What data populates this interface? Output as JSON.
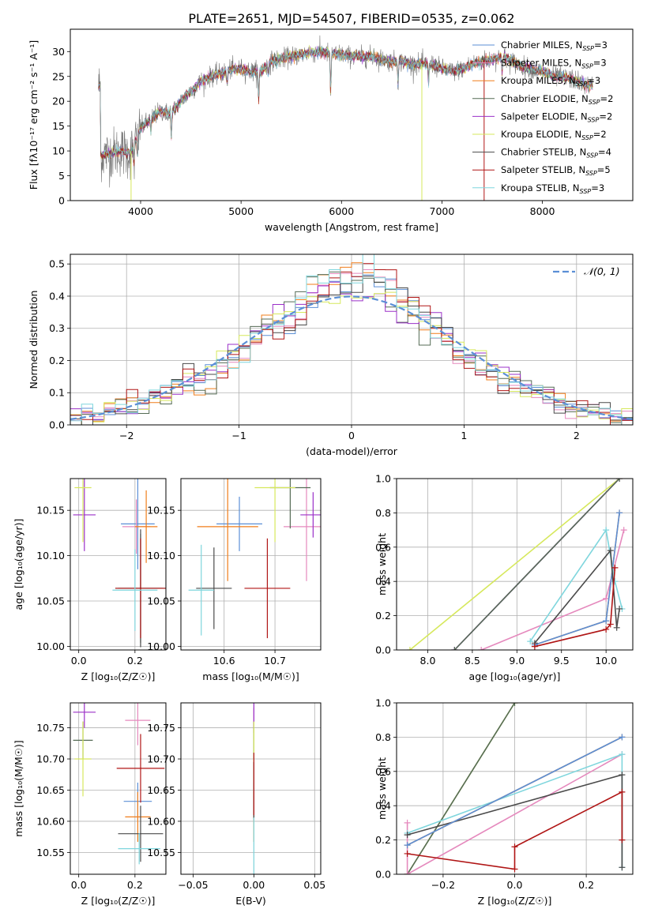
{
  "title": "PLATE=2651, MJD=54507, FIBERID=0535, z=0.062",
  "colors": {
    "chabrier_miles": "#5b8fd6",
    "salpeter_miles": "#e589bd",
    "kroupa_miles": "#f07d1a",
    "chabrier_elodie": "#556b55",
    "salpeter_elodie": "#9b30c8",
    "kroupa_elodie": "#d6e85c",
    "chabrier_stelib": "#4a4a4a",
    "salpeter_stelib": "#b01515",
    "kroupa_stelib": "#7fd6dd",
    "normal_curve": "#5b8fd6"
  },
  "chart_data": [
    {
      "id": "spectrum",
      "type": "line",
      "xlabel": "wavelength [Angstrom, rest frame]",
      "ylabel": "Flux [fλ10⁻¹⁷ erg cm⁻² s⁻¹ A⁻¹]",
      "xlim": [
        3300,
        8900
      ],
      "ylim": [
        0,
        34.5
      ],
      "xticks": [
        4000,
        5000,
        6000,
        7000,
        8000
      ],
      "yticks": [
        0,
        5,
        10,
        15,
        20,
        25,
        30
      ],
      "grid": false,
      "legend_placement": "top-right",
      "legend": [
        "Chabrier MILES, N_SSP=3",
        "Salpeter MILES, N_SSP=3",
        "Kroupa MILES, N_SSP=3",
        "Chabrier ELODIE, N_SSP=2",
        "Salpeter ELODIE, N_SSP=2",
        "Kroupa ELODIE, N_SSP=2",
        "Chabrier STELIB, N_SSP=4",
        "Salpeter STELIB, N_SSP=5",
        "Kroupa STELIB, N_SSP=3"
      ],
      "legend_display": [
        [
          "Chabrier MILES, N",
          "SSP",
          "=3"
        ],
        [
          "Salpeter MILES, N",
          "SSP",
          "=3"
        ],
        [
          "Kroupa MILES, N",
          "SSP",
          "=3"
        ],
        [
          "Chabrier ELODIE, N",
          "SSP",
          "=2"
        ],
        [
          "Salpeter ELODIE, N",
          "SSP",
          "=2"
        ],
        [
          "Kroupa ELODIE, N",
          "SSP",
          "=2"
        ],
        [
          "Chabrier STELIB, N",
          "SSP",
          "=4"
        ],
        [
          "Salpeter STELIB, N",
          "SSP",
          "=5"
        ],
        [
          "Kroupa STELIB, N",
          "SSP",
          "=3"
        ]
      ],
      "continuum": [
        [
          3600,
          9
        ],
        [
          3700,
          9.5
        ],
        [
          3800,
          10
        ],
        [
          3900,
          9.5
        ],
        [
          3950,
          12
        ],
        [
          4000,
          14.5
        ],
        [
          4100,
          16.5
        ],
        [
          4200,
          18
        ],
        [
          4300,
          17.5
        ],
        [
          4400,
          20
        ],
        [
          4500,
          22
        ],
        [
          4600,
          24
        ],
        [
          4700,
          25
        ],
        [
          4800,
          25.5
        ],
        [
          4900,
          26.5
        ],
        [
          5000,
          26.5
        ],
        [
          5100,
          26
        ],
        [
          5200,
          26
        ],
        [
          5300,
          28
        ],
        [
          5400,
          28.5
        ],
        [
          5500,
          29
        ],
        [
          5600,
          29.5
        ],
        [
          5700,
          29.8
        ],
        [
          5800,
          30
        ],
        [
          5900,
          29.5
        ],
        [
          6000,
          29.5
        ],
        [
          6100,
          29
        ],
        [
          6200,
          29
        ],
        [
          6300,
          29
        ],
        [
          6400,
          28.5
        ],
        [
          6500,
          28
        ],
        [
          6600,
          28
        ],
        [
          6700,
          27.5
        ],
        [
          6800,
          27.5
        ],
        [
          6900,
          27.5
        ],
        [
          7000,
          26.5
        ],
        [
          7100,
          26
        ],
        [
          7200,
          26.5
        ],
        [
          7300,
          27.5
        ],
        [
          7400,
          28
        ],
        [
          7500,
          28.5
        ],
        [
          7600,
          29
        ],
        [
          7700,
          28
        ],
        [
          7800,
          27
        ],
        [
          7900,
          26.5
        ],
        [
          8000,
          26
        ],
        [
          8100,
          25
        ],
        [
          8200,
          24.8
        ],
        [
          8300,
          24.5
        ],
        [
          8400,
          23.5
        ],
        [
          8500,
          23
        ]
      ],
      "absorption_lines": [
        [
          3934,
          -4
        ],
        [
          3968,
          -4
        ],
        [
          4102,
          -3
        ],
        [
          4305,
          -5
        ],
        [
          4861,
          -3
        ],
        [
          5175,
          -6
        ],
        [
          5270,
          -2
        ],
        [
          5892,
          -8
        ],
        [
          6563,
          -4
        ],
        [
          6867,
          -4
        ],
        [
          7600,
          -3
        ]
      ]
    },
    {
      "id": "residual_hist",
      "type": "bar",
      "xlabel": "(data-model)/error",
      "ylabel": "Normed distribution",
      "xlim": [
        -2.5,
        2.5
      ],
      "ylim": [
        0,
        0.53
      ],
      "xticks": [
        -2,
        -1,
        0,
        1,
        2
      ],
      "yticks": [
        0.0,
        0.1,
        0.2,
        0.3,
        0.4,
        0.5
      ],
      "grid": true,
      "legend_placement": "top-right",
      "curve_label": "𝒩(0, 1)",
      "curve": {
        "type": "normal",
        "mean": 0,
        "sigma": 1
      },
      "bin_width": 0.1,
      "bin_start": -2.5,
      "series_note": "nine step histograms, one per SSP model fit, closely following N(0,1) with peaks near 0.44-0.50"
    },
    {
      "id": "age_vs_Z",
      "type": "scatter",
      "xlabel": "Z [log₁₀(Z/Z☉)]",
      "ylabel": "age [log₁₀(age/yr)]",
      "xlim": [
        -0.03,
        0.31
      ],
      "ylim": [
        9.996,
        10.185
      ],
      "xticks": [
        0.0,
        0.2
      ],
      "yticks": [
        10.0,
        10.05,
        10.1,
        10.15
      ],
      "grid": true,
      "points": [
        {
          "model": "Chabrier MILES",
          "x": 0.21,
          "xerr": 0.06,
          "y": 10.135,
          "yerr": 0.05
        },
        {
          "model": "Salpeter MILES",
          "x": 0.205,
          "xerr": 0.05,
          "y": 10.132,
          "yerr": 0.03
        },
        {
          "model": "Kroupa MILES",
          "x": 0.24,
          "xerr": 0.04,
          "y": 10.132,
          "yerr": 0.04
        },
        {
          "model": "Chabrier ELODIE",
          "x": 0.22,
          "xerr": 0.09,
          "y": 10.064,
          "yerr": 0.06
        },
        {
          "model": "Salpeter ELODIE",
          "x": 0.02,
          "xerr": 0.04,
          "y": 10.145,
          "yerr": 0.04
        },
        {
          "model": "Kroupa ELODIE",
          "x": 0.015,
          "xerr": 0.03,
          "y": 10.175,
          "yerr": 0.06
        },
        {
          "model": "Chabrier STELIB",
          "x": 0.22,
          "xerr": 0.08,
          "y": 10.064,
          "yerr": 0.065
        },
        {
          "model": "Salpeter STELIB",
          "x": 0.22,
          "xerr": 0.09,
          "y": 10.064,
          "yerr": 0.055
        },
        {
          "model": "Kroupa STELIB",
          "x": 0.2,
          "xerr": 0.08,
          "y": 10.062,
          "yerr": 0.045
        }
      ]
    },
    {
      "id": "age_vs_mass",
      "type": "scatter",
      "xlabel": "mass [log₁₀(M/M☉)]",
      "ylabel": "",
      "xlim": [
        10.515,
        10.79
      ],
      "ylim": [
        9.996,
        10.185
      ],
      "xticks": [
        10.6,
        10.7
      ],
      "yticks": [
        10.0,
        10.05,
        10.1,
        10.15
      ],
      "grid": true,
      "points": [
        {
          "model": "Chabrier MILES",
          "x": 10.63,
          "xerr": 0.045,
          "y": 10.135,
          "yerr": 0.03
        },
        {
          "model": "Salpeter MILES",
          "x": 10.762,
          "xerr": 0.045,
          "y": 10.132,
          "yerr": 0.06
        },
        {
          "model": "Kroupa MILES",
          "x": 10.607,
          "xerr": 0.06,
          "y": 10.132,
          "yerr": 0.06
        },
        {
          "model": "Chabrier ELODIE",
          "x": 10.73,
          "xerr": 0.04,
          "y": 10.175,
          "yerr": 0.045
        },
        {
          "model": "Salpeter ELODIE",
          "x": 10.775,
          "xerr": 0.025,
          "y": 10.145,
          "yerr": 0.025
        },
        {
          "model": "Kroupa ELODIE",
          "x": 10.7,
          "xerr": 0.04,
          "y": 10.175,
          "yerr": 0.06
        },
        {
          "model": "Chabrier STELIB",
          "x": 10.58,
          "xerr": 0.035,
          "y": 10.064,
          "yerr": 0.045
        },
        {
          "model": "Salpeter STELIB",
          "x": 10.685,
          "xerr": 0.045,
          "y": 10.064,
          "yerr": 0.055
        },
        {
          "model": "Kroupa STELIB",
          "x": 10.555,
          "xerr": 0.025,
          "y": 10.062,
          "yerr": 0.05
        }
      ]
    },
    {
      "id": "mass_weight_vs_age",
      "type": "line",
      "xlabel": "age [log₁₀(age/yr)]",
      "ylabel": "mass weight",
      "xlim": [
        7.65,
        10.3
      ],
      "ylim": [
        0,
        1.0
      ],
      "xticks": [
        8.0,
        8.5,
        9.0,
        9.5,
        10.0
      ],
      "yticks": [
        0.0,
        0.2,
        0.4,
        0.6,
        0.8,
        1.0
      ],
      "grid": true,
      "series": [
        {
          "model": "Kroupa ELODIE",
          "points": [
            [
              7.8,
              0.0
            ],
            [
              10.15,
              1.0
            ]
          ]
        },
        {
          "model": "Salpeter ELODIE",
          "points": [
            [
              8.3,
              0.0
            ],
            [
              10.15,
              1.0
            ]
          ]
        },
        {
          "model": "Chabrier ELODIE",
          "points": [
            [
              8.3,
              0.0
            ],
            [
              10.15,
              1.0
            ]
          ]
        },
        {
          "model": "Salpeter MILES",
          "points": [
            [
              8.6,
              0.0
            ],
            [
              10.0,
              0.3
            ],
            [
              10.2,
              0.7
            ]
          ]
        },
        {
          "model": "Kroupa MILES",
          "points": [
            [
              9.2,
              0.03
            ],
            [
              10.0,
              0.17
            ],
            [
              10.15,
              0.8
            ]
          ]
        },
        {
          "model": "Chabrier MILES",
          "points": [
            [
              9.2,
              0.03
            ],
            [
              10.0,
              0.17
            ],
            [
              10.15,
              0.8
            ]
          ]
        },
        {
          "model": "Kroupa STELIB",
          "points": [
            [
              9.15,
              0.05
            ],
            [
              10.0,
              0.7
            ],
            [
              10.1,
              0.4
            ],
            [
              10.18,
              0.24
            ]
          ]
        },
        {
          "model": "Chabrier STELIB",
          "points": [
            [
              9.2,
              0.04
            ],
            [
              10.05,
              0.58
            ],
            [
              10.12,
              0.13
            ],
            [
              10.15,
              0.24
            ]
          ]
        },
        {
          "model": "Salpeter STELIB",
          "points": [
            [
              9.2,
              0.02
            ],
            [
              10.0,
              0.12
            ],
            [
              10.05,
              0.15
            ],
            [
              10.1,
              0.48
            ]
          ]
        }
      ]
    },
    {
      "id": "mass_vs_Z",
      "type": "scatter",
      "xlabel": "Z [log₁₀(Z/Z☉)]",
      "ylabel": "mass [log₁₀(M/M☉)]",
      "xlim": [
        -0.03,
        0.31
      ],
      "ylim": [
        10.515,
        10.79
      ],
      "xticks": [
        0.0,
        0.2
      ],
      "yticks": [
        10.55,
        10.6,
        10.65,
        10.7,
        10.75
      ],
      "grid": true,
      "points": [
        {
          "model": "Chabrier MILES",
          "x": 0.21,
          "xerr": 0.05,
          "y": 10.632,
          "yerr": 0.03
        },
        {
          "model": "Salpeter MILES",
          "x": 0.21,
          "xerr": 0.045,
          "y": 10.762,
          "yerr": 0.04
        },
        {
          "model": "Kroupa MILES",
          "x": 0.21,
          "xerr": 0.045,
          "y": 10.607,
          "yerr": 0.04
        },
        {
          "model": "Chabrier ELODIE",
          "x": 0.015,
          "xerr": 0.035,
          "y": 10.73,
          "yerr": 0.03
        },
        {
          "model": "Salpeter ELODIE",
          "x": 0.02,
          "xerr": 0.04,
          "y": 10.775,
          "yerr": 0.025
        },
        {
          "model": "Kroupa ELODIE",
          "x": 0.015,
          "xerr": 0.03,
          "y": 10.7,
          "yerr": 0.06
        },
        {
          "model": "Chabrier STELIB",
          "x": 0.22,
          "xerr": 0.08,
          "y": 10.58,
          "yerr": 0.045
        },
        {
          "model": "Salpeter STELIB",
          "x": 0.22,
          "xerr": 0.085,
          "y": 10.685,
          "yerr": 0.055
        },
        {
          "model": "Kroupa STELIB",
          "x": 0.215,
          "xerr": 0.075,
          "y": 10.556,
          "yerr": 0.025
        }
      ]
    },
    {
      "id": "mass_vs_ebv",
      "type": "scatter",
      "xlabel": "E(B-V)",
      "ylabel": "",
      "xlim": [
        -0.06,
        0.055
      ],
      "ylim": [
        10.515,
        10.79
      ],
      "xticks": [
        -0.05,
        0.0,
        0.05
      ],
      "yticks": [
        10.55,
        10.6,
        10.65,
        10.7,
        10.75
      ],
      "grid": true,
      "points": [
        {
          "model": "Chabrier MILES",
          "x": 0.0,
          "xerr": 0.0,
          "y": 10.632,
          "yerr": 0.03
        },
        {
          "model": "Salpeter MILES",
          "x": 0.0,
          "xerr": 0.0,
          "y": 10.762,
          "yerr": 0.02
        },
        {
          "model": "Kroupa MILES",
          "x": 0.0,
          "xerr": 0.0,
          "y": 10.607,
          "yerr": 0.04
        },
        {
          "model": "Chabrier ELODIE",
          "x": 0.0,
          "xerr": 0.0,
          "y": 10.73,
          "yerr": 0.03
        },
        {
          "model": "Salpeter ELODIE",
          "x": 0.0,
          "xerr": 0.0,
          "y": 10.775,
          "yerr": 0.025
        },
        {
          "model": "Kroupa ELODIE",
          "x": 0.0,
          "xerr": 0.0,
          "y": 10.7,
          "yerr": 0.06
        },
        {
          "model": "Chabrier STELIB",
          "x": 0.0,
          "xerr": 0.0,
          "y": 10.65,
          "yerr": 0.045
        },
        {
          "model": "Salpeter STELIB",
          "x": 0.0,
          "xerr": 0.0,
          "y": 10.66,
          "yerr": 0.05
        },
        {
          "model": "Kroupa STELIB",
          "x": 0.0,
          "xerr": 0.0,
          "y": 10.556,
          "yerr": 0.05
        }
      ]
    },
    {
      "id": "mass_weight_vs_Z",
      "type": "line",
      "xlabel": "Z [log₁₀(Z/Z☉)]",
      "ylabel": "mass weight",
      "xlim": [
        -0.33,
        0.33
      ],
      "ylim": [
        0,
        1.0
      ],
      "xticks": [
        -0.2,
        0.0,
        0.2
      ],
      "yticks": [
        0.0,
        0.2,
        0.4,
        0.6,
        0.8,
        1.0
      ],
      "grid": true,
      "series": [
        {
          "model": "Kroupa ELODIE",
          "points": [
            [
              -0.3,
              0.0
            ],
            [
              0.0,
              1.0
            ]
          ]
        },
        {
          "model": "Chabrier ELODIE",
          "points": [
            [
              -0.3,
              0.0
            ],
            [
              0.0,
              1.0
            ]
          ]
        },
        {
          "model": "Salpeter MILES",
          "points": [
            [
              -0.3,
              0.3
            ],
            [
              -0.3,
              0.0
            ],
            [
              0.3,
              0.7
            ]
          ]
        },
        {
          "model": "Kroupa STELIB",
          "points": [
            [
              -0.3,
              0.24
            ],
            [
              0.3,
              0.7
            ],
            [
              0.3,
              0.04
            ]
          ]
        },
        {
          "model": "Chabrier STELIB",
          "points": [
            [
              -0.3,
              0.23
            ],
            [
              0.3,
              0.58
            ],
            [
              0.3,
              0.04
            ]
          ]
        },
        {
          "model": "Kroupa MILES",
          "points": [
            [
              -0.3,
              0.17
            ],
            [
              0.3,
              0.8
            ]
          ]
        },
        {
          "model": "Chabrier MILES",
          "points": [
            [
              -0.3,
              0.17
            ],
            [
              0.3,
              0.8
            ]
          ]
        },
        {
          "model": "Salpeter STELIB",
          "points": [
            [
              -0.3,
              0.12
            ],
            [
              0.0,
              0.03
            ],
            [
              0.0,
              0.16
            ],
            [
              0.3,
              0.48
            ],
            [
              0.3,
              0.2
            ]
          ]
        }
      ]
    }
  ]
}
